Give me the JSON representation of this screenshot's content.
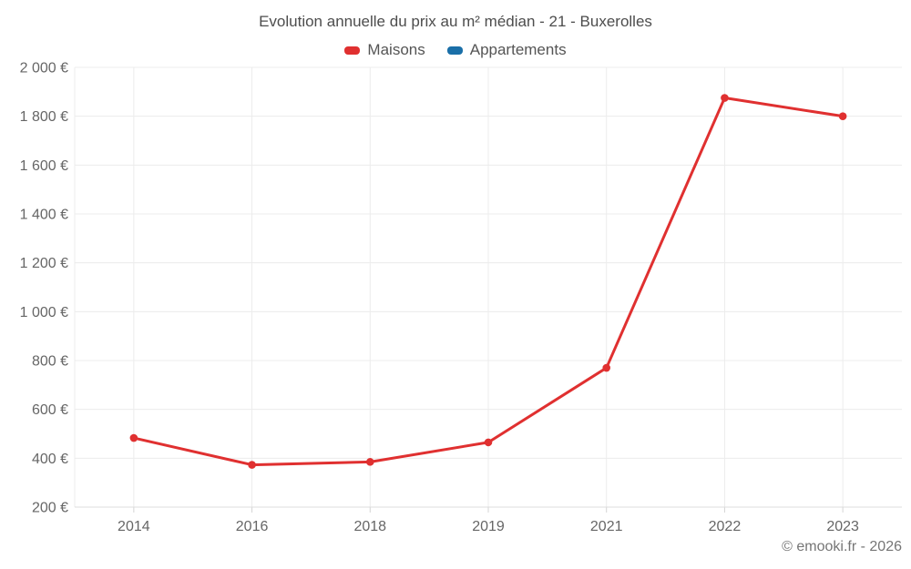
{
  "title": "Evolution annuelle du prix au m² médian - 21 - Buxerolles",
  "legend": {
    "items": [
      {
        "label": "Maisons",
        "color": "#e03030"
      },
      {
        "label": "Appartements",
        "color": "#1a6fa8"
      }
    ]
  },
  "footer": {
    "credit": "© emooki.fr - 2026"
  },
  "chart_data": {
    "type": "line",
    "title": "Evolution annuelle du prix au m² médian - 21 - Buxerolles",
    "categories": [
      "2014",
      "2016",
      "2018",
      "2019",
      "2021",
      "2022",
      "2023"
    ],
    "series": [
      {
        "name": "Maisons",
        "color": "#e03030",
        "values": [
          483,
          373,
          385,
          465,
          770,
          1875,
          1800
        ]
      },
      {
        "name": "Appartements",
        "color": "#1a6fa8",
        "values": []
      }
    ],
    "xlabel": "",
    "ylabel": "",
    "ylim": [
      200,
      2000
    ],
    "yticks": [
      200,
      400,
      600,
      800,
      1000,
      1200,
      1400,
      1600,
      1800,
      2000
    ],
    "ytick_labels": [
      "200 €",
      "400 €",
      "600 €",
      "800 €",
      "1 000 €",
      "1 200 €",
      "1 400 €",
      "1 600 €",
      "1 800 €",
      "2 000 €"
    ],
    "ytick_format": "{value} €",
    "grid": true,
    "legend_position": "top"
  },
  "colors": {
    "grid": "#ececec",
    "axis_line": "#dcdcdc",
    "tick": "#d4d4d4",
    "label": "#666666",
    "title": "#4d4d4d",
    "footer": "#757575",
    "background": "#ffffff"
  }
}
